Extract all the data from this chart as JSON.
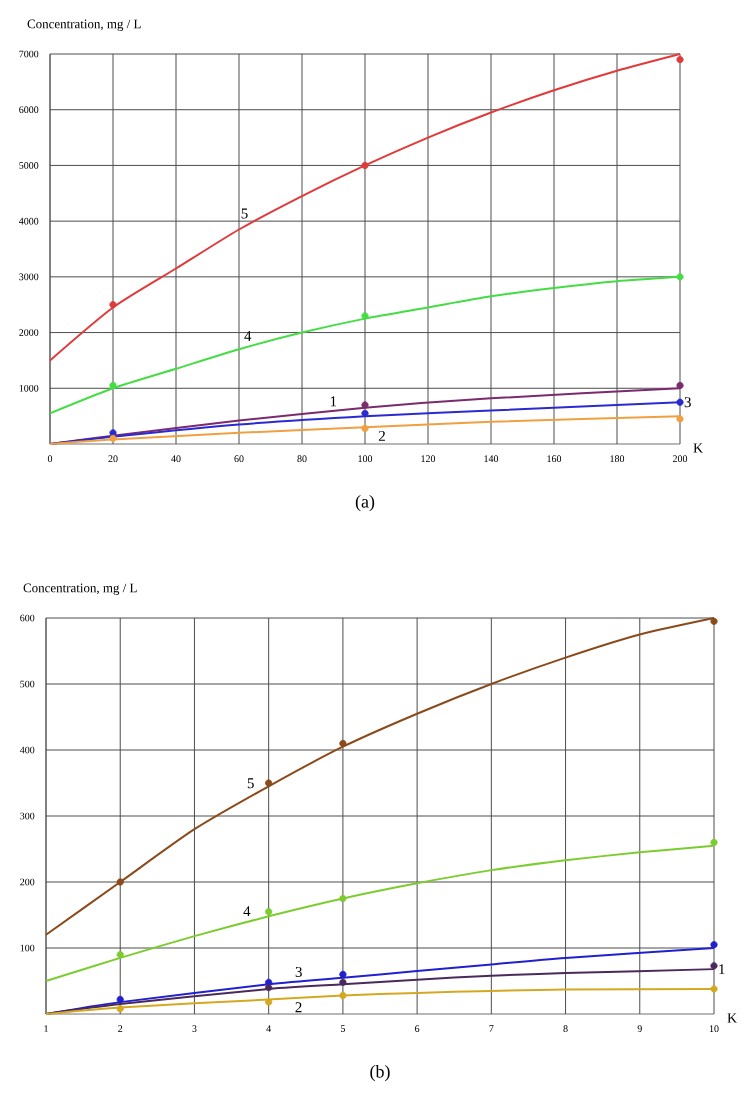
{
  "chart_data": [
    {
      "type": "line",
      "xlabel": "K",
      "ylabel": "Concentration, mg / L",
      "annotations": [
        "(a)"
      ],
      "xlim": [
        0,
        200
      ],
      "ylim": [
        0,
        7000
      ],
      "xticks": [
        0,
        20,
        40,
        60,
        80,
        100,
        120,
        140,
        160,
        180,
        200
      ],
      "yticks": [
        1000,
        2000,
        3000,
        4000,
        5000,
        6000,
        7000
      ],
      "grid": true,
      "line_style": "solid",
      "series": [
        {
          "name": "5",
          "color": "#e03a3a",
          "x": [
            0,
            20,
            40,
            60,
            80,
            100,
            120,
            140,
            160,
            180,
            200
          ],
          "values": [
            1500,
            2450,
            3150,
            3850,
            4450,
            5000,
            5500,
            5950,
            6350,
            6700,
            7000
          ]
        },
        {
          "type": "scatter",
          "marker": "circle",
          "color": "#e03a3a",
          "x": [
            20,
            100,
            200
          ],
          "values": [
            2500,
            5000,
            6900
          ]
        },
        {
          "name": "4",
          "color": "#44dd44",
          "x": [
            0,
            20,
            40,
            60,
            80,
            100,
            120,
            140,
            160,
            180,
            200
          ],
          "values": [
            550,
            1000,
            1350,
            1700,
            2000,
            2250,
            2450,
            2650,
            2800,
            2920,
            3000
          ]
        },
        {
          "type": "scatter",
          "marker": "circle",
          "color": "#44dd44",
          "x": [
            20,
            100,
            200
          ],
          "values": [
            1050,
            2300,
            3000
          ]
        },
        {
          "name": "1",
          "color": "#7b2a6e",
          "x": [
            0,
            20,
            60,
            100,
            140,
            200
          ],
          "values": [
            0,
            150,
            420,
            650,
            820,
            1000
          ]
        },
        {
          "type": "scatter",
          "marker": "circle",
          "color": "#7b2a6e",
          "x": [
            100,
            200
          ],
          "values": [
            700,
            1050
          ]
        },
        {
          "name": "3",
          "color": "#2a2ad0",
          "x": [
            0,
            20,
            60,
            100,
            140,
            200
          ],
          "values": [
            0,
            130,
            350,
            500,
            600,
            750
          ]
        },
        {
          "type": "scatter",
          "marker": "circle",
          "color": "#2a2ad0",
          "x": [
            20,
            100,
            200
          ],
          "values": [
            200,
            550,
            750
          ]
        },
        {
          "name": "2",
          "color": "#f0a040",
          "x": [
            0,
            20,
            60,
            100,
            140,
            200
          ],
          "values": [
            0,
            80,
            200,
            300,
            400,
            500
          ]
        },
        {
          "type": "scatter",
          "marker": "circle",
          "color": "#f0a040",
          "x": [
            20,
            100,
            200
          ],
          "values": [
            100,
            280,
            450
          ]
        }
      ]
    },
    {
      "type": "line",
      "xlabel": "K",
      "ylabel": "Concentration, mg / L",
      "annotations": [
        "(b)"
      ],
      "xlim": [
        1,
        10
      ],
      "ylim": [
        0,
        600
      ],
      "xticks": [
        1,
        2,
        3,
        4,
        5,
        6,
        7,
        8,
        9,
        10
      ],
      "yticks": [
        100,
        200,
        300,
        400,
        500,
        600
      ],
      "grid": true,
      "line_style": "solid",
      "series": [
        {
          "name": "5",
          "color": "#8b4a1a",
          "x": [
            1,
            2,
            3,
            4,
            5,
            6,
            7,
            8,
            9,
            10
          ],
          "values": [
            120,
            200,
            280,
            345,
            405,
            455,
            500,
            540,
            575,
            600
          ]
        },
        {
          "type": "scatter",
          "marker": "circle",
          "color": "#8b4a1a",
          "x": [
            2,
            4,
            5,
            10
          ],
          "values": [
            200,
            350,
            410,
            595
          ]
        },
        {
          "name": "4",
          "color": "#7ccc30",
          "x": [
            1,
            2,
            3,
            4,
            5,
            6,
            7,
            8,
            9,
            10
          ],
          "values": [
            50,
            85,
            118,
            148,
            175,
            198,
            218,
            233,
            245,
            255
          ]
        },
        {
          "type": "scatter",
          "marker": "circle",
          "color": "#7ccc30",
          "x": [
            2,
            4,
            5,
            10
          ],
          "values": [
            90,
            155,
            175,
            260
          ]
        },
        {
          "name": "3",
          "color": "#2020d0",
          "x": [
            1,
            2,
            4,
            5,
            6,
            7,
            8,
            10
          ],
          "values": [
            0,
            18,
            45,
            55,
            65,
            75,
            85,
            100
          ]
        },
        {
          "type": "scatter",
          "marker": "circle",
          "color": "#2020d0",
          "x": [
            2,
            4,
            5,
            10
          ],
          "values": [
            22,
            48,
            60,
            105
          ]
        },
        {
          "name": "1",
          "color": "#4a2a5a",
          "x": [
            1,
            2,
            4,
            5,
            6,
            7,
            8,
            10
          ],
          "values": [
            0,
            15,
            38,
            45,
            52,
            58,
            62,
            68
          ]
        },
        {
          "type": "scatter",
          "marker": "circle",
          "color": "#4a2a5a",
          "x": [
            4,
            5,
            10
          ],
          "values": [
            40,
            48,
            73
          ]
        },
        {
          "name": "2",
          "color": "#d4a820",
          "x": [
            1,
            2,
            4,
            5,
            6,
            7,
            8,
            10
          ],
          "values": [
            0,
            10,
            22,
            28,
            32,
            35,
            37,
            38
          ]
        },
        {
          "type": "scatter",
          "marker": "circle",
          "color": "#d4a820",
          "x": [
            2,
            4,
            5,
            10
          ],
          "values": [
            8,
            18,
            28,
            38
          ]
        }
      ]
    }
  ]
}
